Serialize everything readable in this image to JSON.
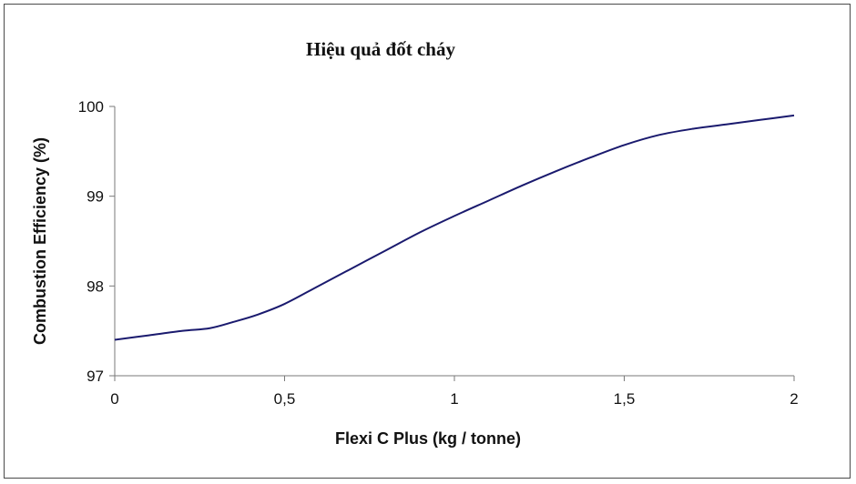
{
  "chart_data": {
    "type": "line",
    "title": "Hiệu quả đốt cháy",
    "xlabel": "Flexi C Plus (kg / tonne)",
    "ylabel": "Combustion Efficiency (%)",
    "xlim": [
      0,
      2
    ],
    "ylim": [
      97,
      100
    ],
    "x_ticks": [
      {
        "value": 0,
        "label": "0"
      },
      {
        "value": 0.5,
        "label": "0,5"
      },
      {
        "value": 1,
        "label": "1"
      },
      {
        "value": 1.5,
        "label": "1,5"
      },
      {
        "value": 2,
        "label": "2"
      }
    ],
    "y_ticks": [
      {
        "value": 97,
        "label": "97"
      },
      {
        "value": 98,
        "label": "98"
      },
      {
        "value": 99,
        "label": "99"
      },
      {
        "value": 100,
        "label": "100"
      }
    ],
    "grid": false,
    "legend": "none",
    "series": [
      {
        "color": "#1a1a6e",
        "x": [
          0,
          0.1,
          0.2,
          0.28,
          0.35,
          0.42,
          0.5,
          0.6,
          0.7,
          0.8,
          0.9,
          1.0,
          1.1,
          1.2,
          1.3,
          1.4,
          1.5,
          1.6,
          1.7,
          1.8,
          1.9,
          2.0
        ],
        "y": [
          97.4,
          97.45,
          97.5,
          97.53,
          97.6,
          97.68,
          97.8,
          98.0,
          98.2,
          98.4,
          98.6,
          98.78,
          98.95,
          99.12,
          99.28,
          99.43,
          99.57,
          99.68,
          99.75,
          99.8,
          99.85,
          99.9
        ]
      }
    ]
  }
}
